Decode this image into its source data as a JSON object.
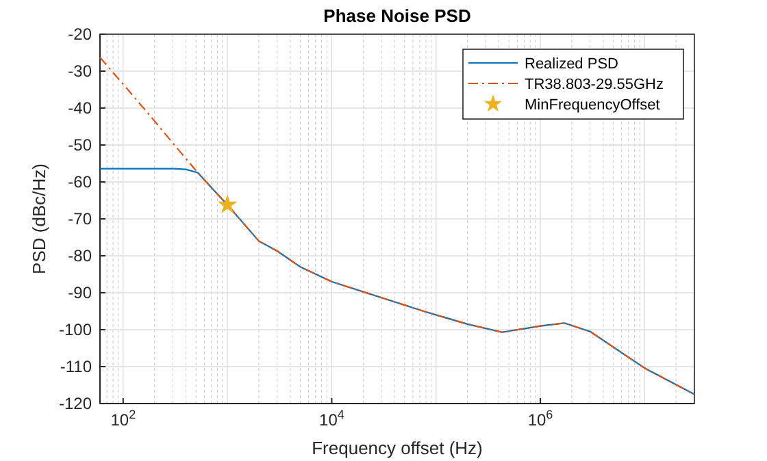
{
  "chart_data": {
    "type": "line",
    "title": "Phase Noise PSD",
    "xlabel": "Frequency offset (Hz)",
    "ylabel": "PSD (dBc/Hz)",
    "log": "x",
    "grid": true,
    "legend": "top right",
    "xlim": [
      60,
      30000000
    ],
    "xticks": [
      {
        "value": 100,
        "label": "10$^{2}$"
      },
      {
        "value": 10000,
        "label": "10$^{4}$"
      },
      {
        "value": 1000000,
        "label": "10$^{6}$"
      }
    ],
    "ylim": [
      -120,
      -20
    ],
    "yticks": [
      -120,
      -110,
      -100,
      -90,
      -80,
      -70,
      -60,
      -50,
      -40,
      -30,
      -20
    ],
    "series": [
      {
        "name": "Realized PSD",
        "color": "#0072bd",
        "line_style": "solid",
        "x": [
          60,
          100,
          200,
          300,
          400,
          520,
          700,
          1000,
          2000,
          3000,
          5000,
          10000,
          76000,
          100000,
          200000,
          430000,
          1000000,
          1700000,
          3000000,
          10000000,
          30000000
        ],
        "values": [
          -56.4,
          -56.4,
          -56.4,
          -56.4,
          -56.6,
          -57.5,
          -61.5,
          -66.2,
          -76,
          -78.7,
          -83,
          -87,
          -95,
          -96,
          -98.5,
          -100.7,
          -99,
          -98.2,
          -100.5,
          -110.4,
          -117.5
        ]
      },
      {
        "name": "TR38.803-29.55GHz",
        "color": "#d95319",
        "line_style": "dashed",
        "x": [
          60,
          100,
          200,
          300,
          520,
          700,
          1000,
          2000,
          3000,
          5000,
          10000,
          76000,
          100000,
          200000,
          430000,
          1000000,
          1700000,
          3000000,
          10000000,
          30000000
        ],
        "values": [
          -26.3,
          -33.5,
          -43.5,
          -49.5,
          -57.5,
          -61.5,
          -66.2,
          -76,
          -78.7,
          -83,
          -87,
          -95,
          -96,
          -98.5,
          -100.7,
          -99,
          -98.2,
          -100.5,
          -110.4,
          -117.5
        ]
      },
      {
        "name": "MinFrequencyOffset",
        "type": "scatter",
        "color": "#edb120",
        "marker": "star",
        "x": [
          1000
        ],
        "values": [
          -66.2
        ]
      }
    ]
  }
}
